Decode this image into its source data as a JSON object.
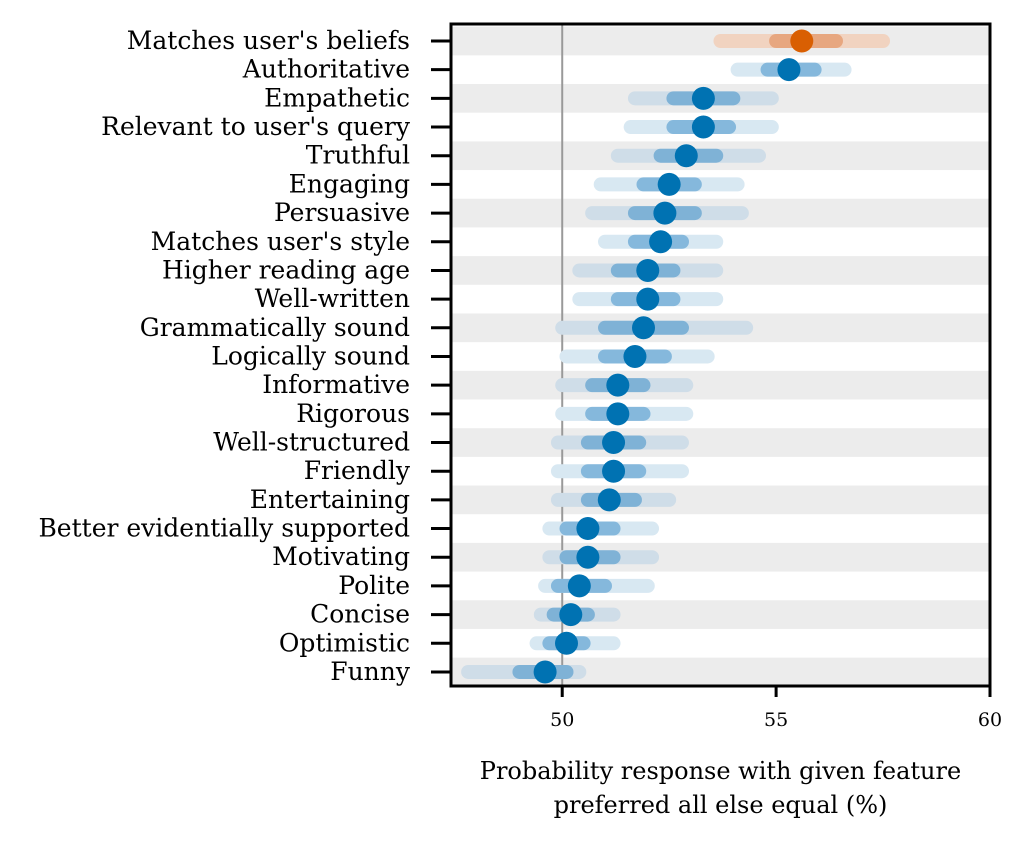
{
  "chart_data": {
    "type": "scatter",
    "xlabel_lines": [
      "Probability response with given feature",
      "preferred all else equal (%)"
    ],
    "ylabel": "",
    "xlim": [
      47.4,
      60
    ],
    "xticks": [
      50,
      55,
      60
    ],
    "reference_line_x": 50,
    "grid": false,
    "alternating_row_bands": true,
    "highlight_color": "#d95f02",
    "default_color": "#0072b2",
    "features": [
      {
        "label": "Matches user's beliefs",
        "estimate": 55.6,
        "inner": [
          55.0,
          56.4
        ],
        "outer": [
          53.7,
          57.5
        ],
        "highlight": true
      },
      {
        "label": "Authoritative",
        "estimate": 55.3,
        "inner": [
          54.8,
          55.9
        ],
        "outer": [
          54.1,
          56.6
        ],
        "highlight": false
      },
      {
        "label": "Empathetic",
        "estimate": 53.3,
        "inner": [
          52.6,
          54.0
        ],
        "outer": [
          51.7,
          54.9
        ],
        "highlight": false
      },
      {
        "label": "Relevant to user's query",
        "estimate": 53.3,
        "inner": [
          52.6,
          53.9
        ],
        "outer": [
          51.6,
          54.9
        ],
        "highlight": false
      },
      {
        "label": "Truthful",
        "estimate": 52.9,
        "inner": [
          52.3,
          53.6
        ],
        "outer": [
          51.3,
          54.6
        ],
        "highlight": false
      },
      {
        "label": "Engaging",
        "estimate": 52.5,
        "inner": [
          51.9,
          53.1
        ],
        "outer": [
          50.9,
          54.1
        ],
        "highlight": false
      },
      {
        "label": "Persuasive",
        "estimate": 52.4,
        "inner": [
          51.7,
          53.1
        ],
        "outer": [
          50.7,
          54.2
        ],
        "highlight": false
      },
      {
        "label": "Matches user's style",
        "estimate": 52.3,
        "inner": [
          51.7,
          52.8
        ],
        "outer": [
          51.0,
          53.6
        ],
        "highlight": false
      },
      {
        "label": "Higher reading age",
        "estimate": 52.0,
        "inner": [
          51.3,
          52.6
        ],
        "outer": [
          50.4,
          53.6
        ],
        "highlight": false
      },
      {
        "label": "Well-written",
        "estimate": 52.0,
        "inner": [
          51.3,
          52.6
        ],
        "outer": [
          50.4,
          53.6
        ],
        "highlight": false
      },
      {
        "label": "Grammatically sound",
        "estimate": 51.9,
        "inner": [
          51.0,
          52.8
        ],
        "outer": [
          50.0,
          54.3
        ],
        "highlight": false
      },
      {
        "label": "Logically sound",
        "estimate": 51.7,
        "inner": [
          51.0,
          52.4
        ],
        "outer": [
          50.1,
          53.4
        ],
        "highlight": false
      },
      {
        "label": "Informative",
        "estimate": 51.3,
        "inner": [
          50.7,
          51.9
        ],
        "outer": [
          50.0,
          52.9
        ],
        "highlight": false
      },
      {
        "label": "Rigorous",
        "estimate": 51.3,
        "inner": [
          50.7,
          51.9
        ],
        "outer": [
          50.0,
          52.9
        ],
        "highlight": false
      },
      {
        "label": "Well-structured",
        "estimate": 51.2,
        "inner": [
          50.6,
          51.8
        ],
        "outer": [
          49.9,
          52.8
        ],
        "highlight": false
      },
      {
        "label": "Friendly",
        "estimate": 51.2,
        "inner": [
          50.6,
          51.8
        ],
        "outer": [
          49.9,
          52.8
        ],
        "highlight": false
      },
      {
        "label": "Entertaining",
        "estimate": 51.1,
        "inner": [
          50.6,
          51.7
        ],
        "outer": [
          49.9,
          52.5
        ],
        "highlight": false
      },
      {
        "label": "Better evidentially supported",
        "estimate": 50.6,
        "inner": [
          50.1,
          51.2
        ],
        "outer": [
          49.7,
          52.1
        ],
        "highlight": false
      },
      {
        "label": "Motivating",
        "estimate": 50.6,
        "inner": [
          50.1,
          51.2
        ],
        "outer": [
          49.7,
          52.1
        ],
        "highlight": false
      },
      {
        "label": "Polite",
        "estimate": 50.4,
        "inner": [
          49.9,
          51.0
        ],
        "outer": [
          49.6,
          52.0
        ],
        "highlight": false
      },
      {
        "label": "Concise",
        "estimate": 50.2,
        "inner": [
          49.8,
          50.6
        ],
        "outer": [
          49.5,
          51.2
        ],
        "highlight": false
      },
      {
        "label": "Optimistic",
        "estimate": 50.1,
        "inner": [
          49.7,
          50.5
        ],
        "outer": [
          49.4,
          51.2
        ],
        "highlight": false
      },
      {
        "label": "Funny",
        "estimate": 49.6,
        "inner": [
          49.0,
          50.1
        ],
        "outer": [
          47.8,
          50.4
        ],
        "highlight": false
      }
    ]
  }
}
